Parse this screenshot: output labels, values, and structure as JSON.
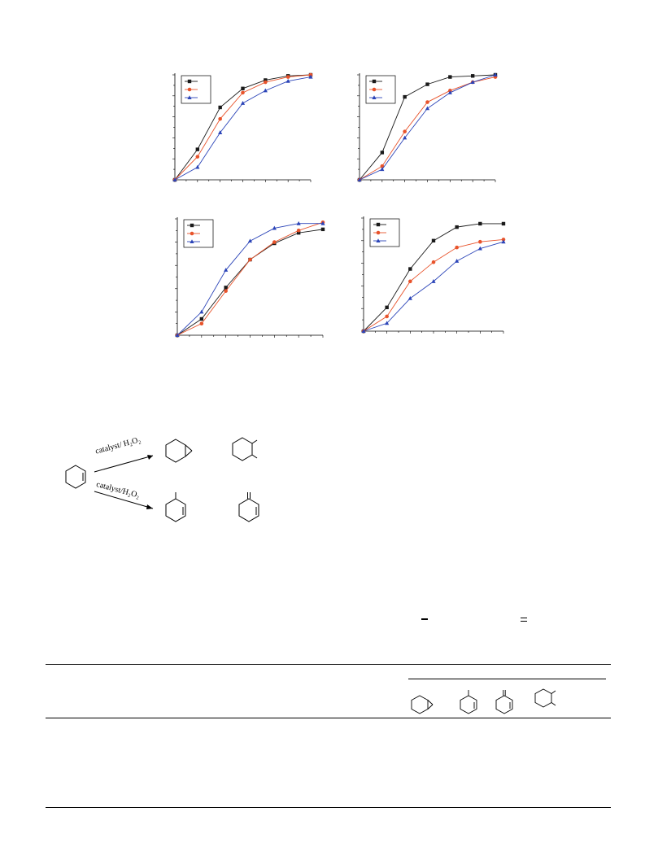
{
  "figure": {
    "panels": [
      {
        "legend": [
          "",
          "",
          ""
        ],
        "colors": [
          "#1a1a1a",
          "#e8532b",
          "#2b44b8"
        ],
        "markers": [
          "square",
          "circle",
          "triangle"
        ]
      },
      {
        "legend": [
          "",
          "",
          ""
        ],
        "colors": [
          "#1a1a1a",
          "#e8532b",
          "#2b44b8"
        ],
        "markers": [
          "square",
          "circle",
          "triangle"
        ]
      },
      {
        "legend": [
          "",
          "",
          ""
        ],
        "colors": [
          "#1a1a1a",
          "#e8532b",
          "#2b44b8"
        ],
        "markers": [
          "square",
          "circle",
          "triangle"
        ]
      },
      {
        "legend": [
          "",
          "",
          ""
        ],
        "colors": [
          "#1a1a1a",
          "#e8532b",
          "#2b44b8"
        ],
        "markers": [
          "square",
          "circle",
          "triangle"
        ]
      }
    ]
  },
  "chart_data": [
    {
      "type": "line",
      "x": [
        0,
        1,
        2,
        3,
        4,
        5,
        6
      ],
      "series": [
        {
          "values": [
            0,
            0.29,
            0.69,
            0.87,
            0.95,
            0.99,
            1.0
          ]
        },
        {
          "values": [
            0,
            0.22,
            0.58,
            0.83,
            0.93,
            0.98,
            1.0
          ]
        },
        {
          "values": [
            0,
            0.12,
            0.45,
            0.73,
            0.85,
            0.94,
            0.98
          ]
        }
      ]
    },
    {
      "type": "line",
      "x": [
        0,
        1,
        2,
        3,
        4,
        5,
        6
      ],
      "series": [
        {
          "values": [
            0,
            0.26,
            0.79,
            0.91,
            0.98,
            0.99,
            1.0
          ]
        },
        {
          "values": [
            0,
            0.13,
            0.46,
            0.74,
            0.85,
            0.93,
            0.98
          ]
        },
        {
          "values": [
            0,
            0.1,
            0.4,
            0.68,
            0.83,
            0.93,
            1.0
          ]
        }
      ]
    },
    {
      "type": "line",
      "x": [
        0,
        1,
        2,
        3,
        4,
        5,
        6
      ],
      "series": [
        {
          "values": [
            0,
            0.14,
            0.41,
            0.65,
            0.79,
            0.88,
            0.91
          ]
        },
        {
          "values": [
            0,
            0.1,
            0.38,
            0.65,
            0.8,
            0.9,
            0.97
          ]
        },
        {
          "values": [
            0,
            0.2,
            0.56,
            0.81,
            0.92,
            0.96,
            0.96
          ]
        }
      ]
    },
    {
      "type": "line",
      "x": [
        0,
        1,
        2,
        3,
        4,
        5,
        6
      ],
      "series": [
        {
          "values": [
            0,
            0.21,
            0.55,
            0.8,
            0.92,
            0.95,
            0.95
          ]
        },
        {
          "values": [
            0,
            0.13,
            0.44,
            0.61,
            0.74,
            0.79,
            0.81
          ]
        },
        {
          "values": [
            0,
            0.07,
            0.29,
            0.44,
            0.62,
            0.73,
            0.79
          ]
        }
      ]
    }
  ],
  "scheme": {
    "arrow_top": "catalyst/ H₂O₂",
    "arrow_bottom": "catalyst/H₂O₂",
    "molecules": [
      "cyclohexene",
      "cyclohexene oxide",
      "cyclohexanediol",
      "2-cyclohexen-1-ol",
      "2-cyclohexen-1-one"
    ]
  },
  "table": {
    "header_icons": [
      "epoxide",
      "enol",
      "enone",
      "diol"
    ]
  }
}
